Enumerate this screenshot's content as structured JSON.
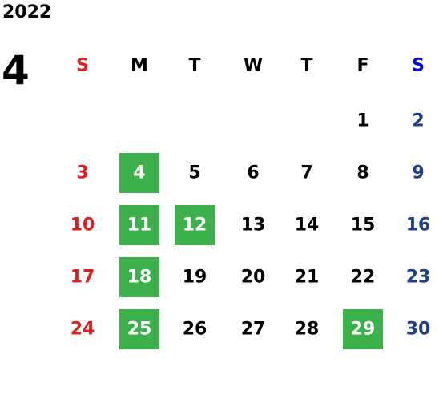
{
  "year": "2022",
  "month": "4",
  "weekdays": [
    "S",
    "M",
    "T",
    "W",
    "T",
    "F",
    "S"
  ],
  "weeks": [
    [
      null,
      null,
      null,
      null,
      null,
      1,
      2
    ],
    [
      3,
      4,
      5,
      6,
      7,
      8,
      9
    ],
    [
      10,
      11,
      12,
      13,
      14,
      15,
      16
    ],
    [
      17,
      18,
      19,
      20,
      21,
      22,
      23
    ],
    [
      24,
      25,
      26,
      27,
      28,
      29,
      30
    ]
  ],
  "highlighted": [
    4,
    11,
    12,
    18,
    25,
    29
  ],
  "colors": {
    "sunday": "#e02020",
    "saturday_header": "#0000dd",
    "saturday": "#1f3f8f",
    "weekday": "#000000",
    "highlight": "#3cb04a",
    "highlight_text": "#ffffff"
  }
}
